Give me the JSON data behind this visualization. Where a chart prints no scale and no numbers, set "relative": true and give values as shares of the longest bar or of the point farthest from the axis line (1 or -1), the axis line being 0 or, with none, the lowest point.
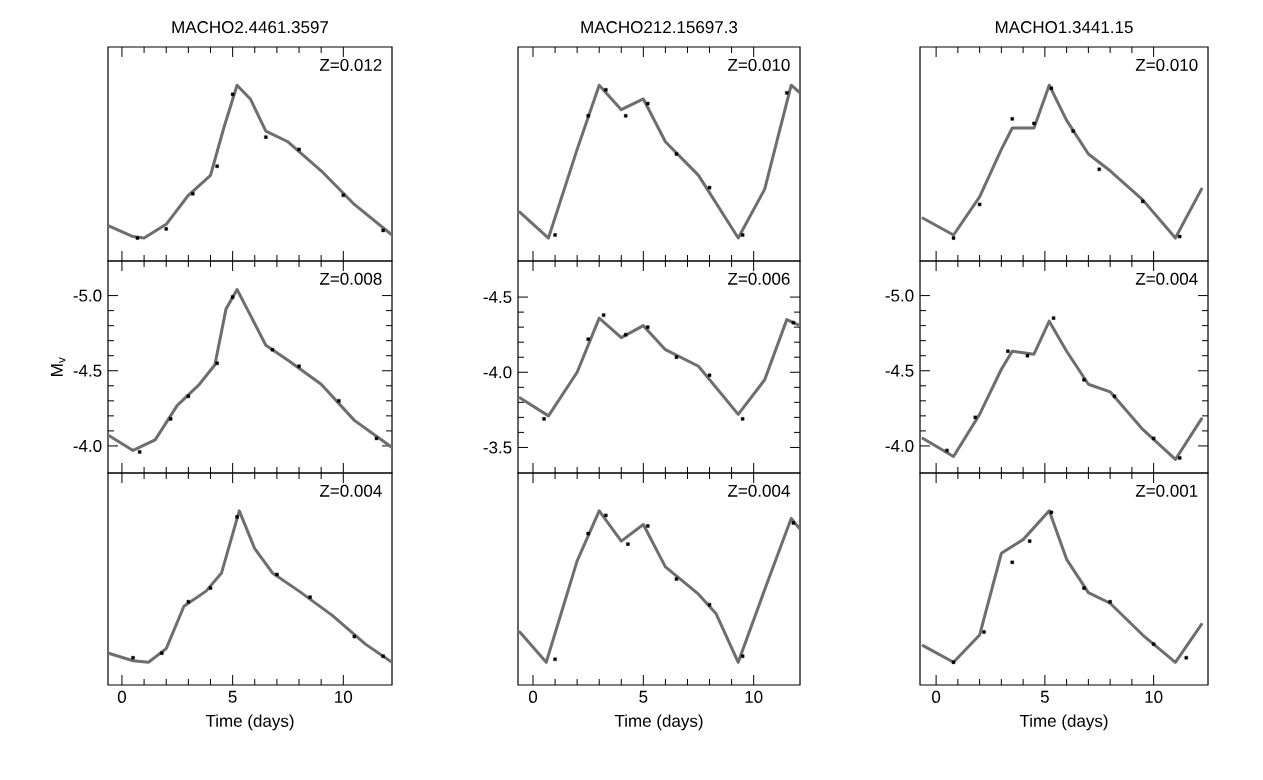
{
  "chart_data": [
    {
      "type": "line",
      "title": "MACHO2.4461.3597",
      "annotations": [
        "Z=0.012"
      ],
      "relative": true,
      "tick_labels": false,
      "xlim": [
        -0.63,
        12.2
      ],
      "xticks": [
        0,
        5,
        10
      ],
      "series": [
        {
          "type": "line",
          "color": "#6e6e6e",
          "x": [
            -0.6,
            0.5,
            1,
            2,
            3,
            4,
            4.6,
            5.2,
            5.8,
            6.5,
            7.5,
            9,
            10.5,
            12.2
          ],
          "values": [
            0.08,
            0.01,
            0,
            0.09,
            0.28,
            0.41,
            0.72,
            1,
            0.91,
            0.7,
            0.63,
            0.44,
            0.22,
            0.02
          ]
        },
        {
          "type": "scatter",
          "color": "#000000",
          "marker": "square",
          "x": [
            0.7,
            2.0,
            3.2,
            4.3,
            5.0,
            6.5,
            8.0,
            10,
            11.8
          ],
          "values": [
            0.0,
            0.06,
            0.29,
            0.47,
            0.94,
            0.66,
            0.58,
            0.28,
            0.05
          ]
        }
      ]
    },
    {
      "type": "line",
      "title": "MACHO212.15697.3",
      "annotations": [
        "Z=0.010"
      ],
      "relative": true,
      "tick_labels": false,
      "xlim": [
        -0.68,
        12.1
      ],
      "xticks": [
        0,
        5,
        10
      ],
      "series": [
        {
          "type": "line",
          "color": "#6e6e6e",
          "x": [
            -0.6,
            0.7,
            2,
            3,
            4,
            5,
            6,
            7.5,
            9.3,
            10.5,
            11.7,
            12.1
          ],
          "values": [
            0.17,
            0,
            0.58,
            1,
            0.84,
            0.91,
            0.63,
            0.41,
            0,
            0.32,
            1,
            0.95
          ]
        },
        {
          "type": "scatter",
          "color": "#000000",
          "marker": "square",
          "x": [
            1.0,
            2.5,
            3.3,
            4.2,
            5.2,
            6.5,
            8.0,
            9.5,
            11.5
          ],
          "values": [
            0.02,
            0.8,
            0.97,
            0.8,
            0.88,
            0.55,
            0.33,
            0.02,
            0.95
          ]
        }
      ]
    },
    {
      "type": "line",
      "title": "MACHO1.3441.15",
      "annotations": [
        "Z=0.010"
      ],
      "relative": true,
      "tick_labels": false,
      "xlim": [
        -0.74,
        12.5
      ],
      "xticks": [
        0,
        5,
        10
      ],
      "series": [
        {
          "type": "line",
          "color": "#6e6e6e",
          "x": [
            -0.6,
            0.8,
            2,
            3,
            3.5,
            4.5,
            5.2,
            6,
            7,
            8,
            9.5,
            11,
            12.2
          ],
          "values": [
            0.13,
            0.02,
            0.27,
            0.58,
            0.72,
            0.72,
            1,
            0.77,
            0.55,
            0.44,
            0.25,
            0,
            0.32
          ]
        },
        {
          "type": "scatter",
          "color": "#000000",
          "marker": "square",
          "x": [
            0.8,
            2.0,
            3.5,
            4.5,
            5.3,
            6.3,
            7.5,
            9.5,
            11.2
          ],
          "values": [
            0.0,
            0.22,
            0.78,
            0.75,
            0.98,
            0.7,
            0.45,
            0.24,
            0.01
          ]
        }
      ]
    },
    {
      "type": "line",
      "ylabel": "M$_{v}$",
      "annotations": [
        "Z=0.008"
      ],
      "tick_labels": "y",
      "xlim": [
        -0.63,
        12.2
      ],
      "xticks": [
        0,
        5,
        10
      ],
      "ylim": [
        -3.82,
        -5.23
      ],
      "yticks": [
        {
          "value": -5.0,
          "label": "-5.0"
        },
        {
          "value": -4.5,
          "label": "-4.5"
        },
        {
          "value": -4.0,
          "label": "-4.0"
        }
      ],
      "series": [
        {
          "type": "line",
          "color": "#6e6e6e",
          "x": [
            -0.6,
            0.5,
            1.5,
            2.5,
            3.5,
            4.2,
            4.7,
            5.2,
            5.8,
            6.5,
            7.5,
            9,
            10.5,
            12.2
          ],
          "values": [
            -4.07,
            -3.97,
            -4.04,
            -4.27,
            -4.41,
            -4.54,
            -4.91,
            -5.04,
            -4.87,
            -4.67,
            -4.57,
            -4.41,
            -4.17,
            -3.99
          ]
        },
        {
          "type": "scatter",
          "color": "#000000",
          "marker": "square",
          "x": [
            0.8,
            2.2,
            3.0,
            4.3,
            5.0,
            6.8,
            8.0,
            9.8,
            11.5
          ],
          "values": [
            -3.96,
            -4.18,
            -4.33,
            -4.55,
            -4.99,
            -4.64,
            -4.53,
            -4.3,
            -4.05
          ]
        }
      ]
    },
    {
      "type": "line",
      "annotations": [
        "Z=0.006"
      ],
      "tick_labels": "y",
      "xlim": [
        -0.68,
        12.1
      ],
      "xticks": [
        0,
        5,
        10
      ],
      "ylim": [
        -3.33,
        -4.74
      ],
      "yticks": [
        {
          "value": -4.5,
          "label": "-4.5"
        },
        {
          "value": -4.0,
          "label": "-4.0"
        },
        {
          "value": -3.5,
          "label": "-3.5"
        }
      ],
      "series": [
        {
          "type": "line",
          "color": "#6e6e6e",
          "x": [
            -0.6,
            0.7,
            2,
            3,
            4,
            5,
            6,
            7.5,
            9.3,
            10.5,
            11.5,
            12.1
          ],
          "values": [
            -3.83,
            -3.71,
            -4.0,
            -4.36,
            -4.23,
            -4.31,
            -4.15,
            -4.04,
            -3.72,
            -3.95,
            -4.35,
            -4.31
          ]
        },
        {
          "type": "scatter",
          "color": "#000000",
          "marker": "square",
          "x": [
            0.5,
            2.5,
            3.2,
            4.2,
            5.2,
            6.5,
            8.0,
            9.5,
            11.8
          ],
          "values": [
            -3.69,
            -4.22,
            -4.38,
            -4.25,
            -4.3,
            -4.1,
            -3.98,
            -3.69,
            -4.33
          ]
        }
      ]
    },
    {
      "type": "line",
      "annotations": [
        "Z=0.004"
      ],
      "tick_labels": "y",
      "xlim": [
        -0.74,
        12.5
      ],
      "xticks": [
        0,
        5,
        10
      ],
      "ylim": [
        -3.82,
        -5.23
      ],
      "yticks": [
        {
          "value": -5.0,
          "label": "-5.0"
        },
        {
          "value": -4.5,
          "label": "-4.5"
        },
        {
          "value": -4.0,
          "label": "-4.0"
        }
      ],
      "series": [
        {
          "type": "line",
          "color": "#6e6e6e",
          "x": [
            -0.6,
            0.8,
            2,
            3,
            3.5,
            4.5,
            5.2,
            6,
            7,
            8,
            9.5,
            11,
            12.2
          ],
          "values": [
            -4.05,
            -3.93,
            -4.21,
            -4.51,
            -4.63,
            -4.61,
            -4.83,
            -4.63,
            -4.41,
            -4.36,
            -4.11,
            -3.91,
            -4.18
          ]
        },
        {
          "type": "scatter",
          "color": "#000000",
          "marker": "square",
          "x": [
            0.5,
            1.8,
            3.3,
            4.2,
            5.4,
            6.8,
            8.2,
            10,
            11.2
          ],
          "values": [
            -3.97,
            -4.19,
            -4.63,
            -4.6,
            -4.85,
            -4.44,
            -4.33,
            -4.05,
            -3.92
          ]
        }
      ]
    },
    {
      "type": "line",
      "xlabel": "Time (days)",
      "annotations": [
        "Z=0.004"
      ],
      "relative": true,
      "tick_labels": "x",
      "xlim": [
        -0.63,
        12.2
      ],
      "xticks": [
        0,
        5,
        10
      ],
      "series": [
        {
          "type": "line",
          "color": "#6e6e6e",
          "x": [
            -0.6,
            0.5,
            1.2,
            2,
            2.8,
            3.8,
            4.5,
            5.3,
            6,
            6.8,
            8,
            9.5,
            11,
            12.2
          ],
          "values": [
            0.06,
            0.01,
            0,
            0.09,
            0.37,
            0.47,
            0.59,
            1,
            0.75,
            0.59,
            0.47,
            0.31,
            0.12,
            0
          ]
        },
        {
          "type": "scatter",
          "color": "#000000",
          "marker": "square",
          "x": [
            0.5,
            1.8,
            3.0,
            4.0,
            5.2,
            7.0,
            8.5,
            10.5,
            11.8
          ],
          "values": [
            0.03,
            0.06,
            0.4,
            0.49,
            0.96,
            0.58,
            0.43,
            0.17,
            0.04
          ]
        }
      ]
    },
    {
      "type": "line",
      "xlabel": "Time (days)",
      "annotations": [
        "Z=0.004"
      ],
      "relative": true,
      "tick_labels": "x",
      "xlim": [
        -0.68,
        12.1
      ],
      "xticks": [
        0,
        5,
        10
      ],
      "series": [
        {
          "type": "line",
          "color": "#6e6e6e",
          "x": [
            -0.6,
            0.6,
            2,
            3,
            4,
            5,
            6,
            7.5,
            8.3,
            9.3,
            10.5,
            11.7,
            12.1
          ],
          "values": [
            0.2,
            0,
            0.67,
            1,
            0.8,
            0.91,
            0.63,
            0.45,
            0.32,
            0,
            0.48,
            0.95,
            0.88
          ]
        },
        {
          "type": "scatter",
          "color": "#000000",
          "marker": "square",
          "x": [
            1.0,
            2.5,
            3.3,
            4.3,
            5.2,
            6.5,
            8.0,
            9.5,
            11.8
          ],
          "values": [
            0.02,
            0.85,
            0.97,
            0.78,
            0.9,
            0.55,
            0.38,
            0.04,
            0.92
          ]
        }
      ]
    },
    {
      "type": "line",
      "xlabel": "Time (days)",
      "annotations": [
        "Z=0.001"
      ],
      "relative": true,
      "tick_labels": "x",
      "xlim": [
        -0.74,
        12.5
      ],
      "xticks": [
        0,
        5,
        10
      ],
      "series": [
        {
          "type": "line",
          "color": "#6e6e6e",
          "x": [
            -0.6,
            0.8,
            2,
            3,
            4,
            5.2,
            6,
            7,
            8,
            9.5,
            11,
            12.2
          ],
          "values": [
            0.11,
            0,
            0.18,
            0.72,
            0.81,
            1,
            0.68,
            0.46,
            0.39,
            0.18,
            0,
            0.25
          ]
        },
        {
          "type": "scatter",
          "color": "#000000",
          "marker": "square",
          "x": [
            0.8,
            2.2,
            3.5,
            4.3,
            5.3,
            6.8,
            8.0,
            10,
            11.5
          ],
          "values": [
            0.0,
            0.2,
            0.66,
            0.8,
            0.99,
            0.49,
            0.4,
            0.12,
            0.03
          ]
        }
      ]
    }
  ]
}
